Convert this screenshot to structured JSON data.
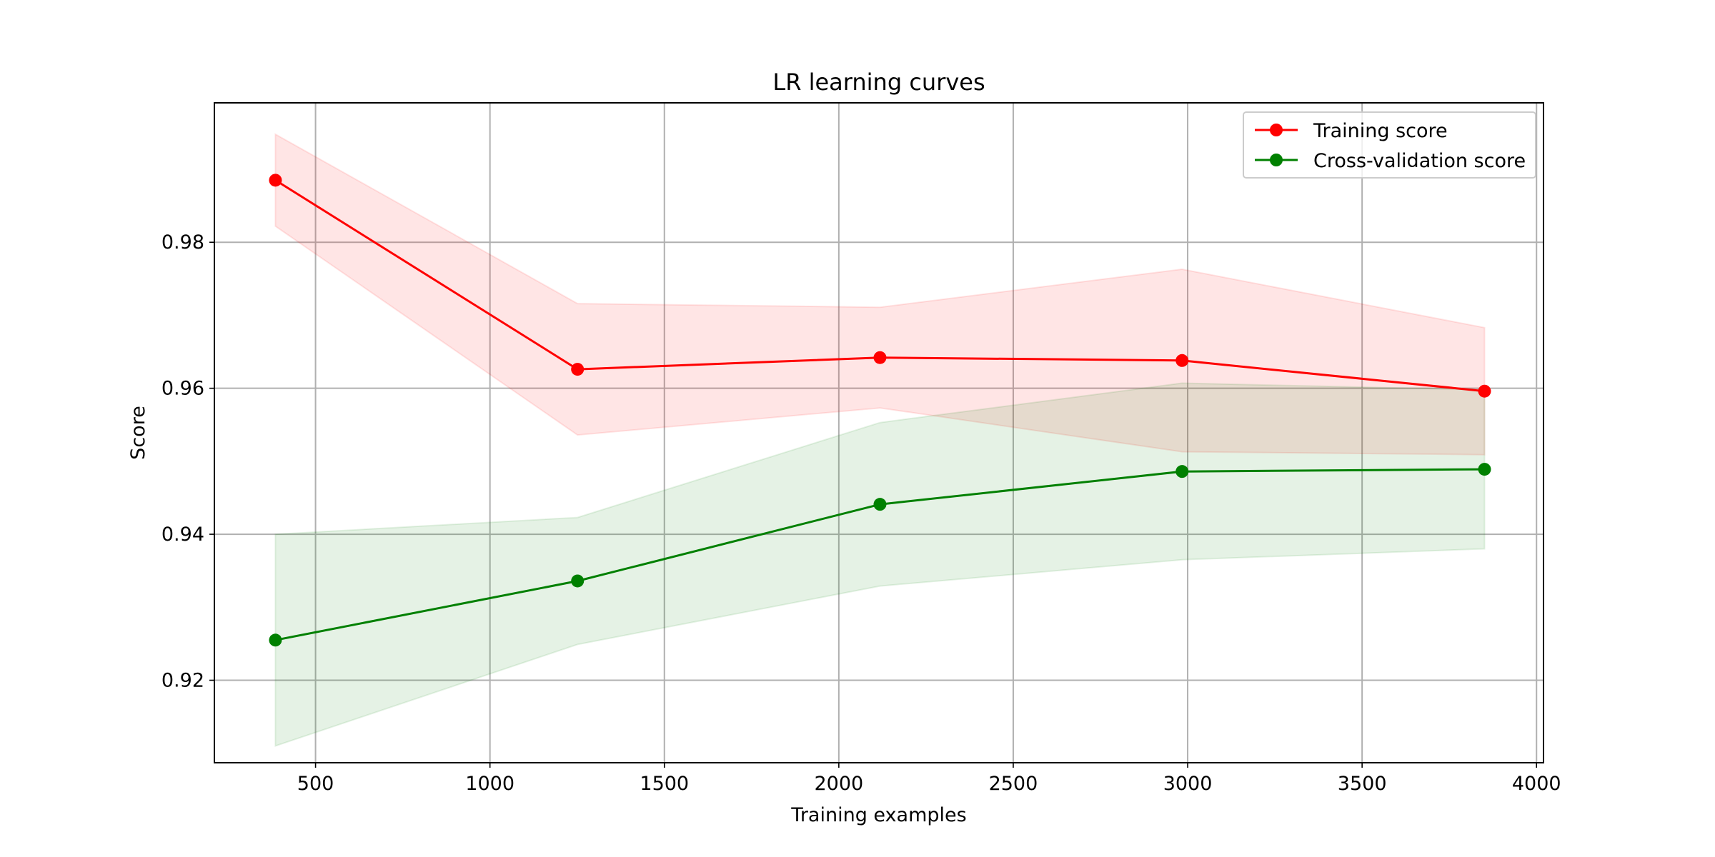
{
  "chart_data": {
    "type": "line",
    "title": "LR learning curves",
    "xlabel": "Training examples",
    "ylabel": "Score",
    "xlim": [
      210,
      4020
    ],
    "ylim": [
      0.9087,
      0.9991
    ],
    "xticks": [
      500,
      1000,
      1500,
      2000,
      2500,
      3000,
      3500,
      4000
    ],
    "yticks": [
      0.92,
      0.94,
      0.96,
      0.98
    ],
    "ytick_labels": [
      "0.92",
      "0.94",
      "0.96",
      "0.98"
    ],
    "grid": true,
    "legend_position": "top-right",
    "x": [
      385,
      1251,
      2118,
      2984,
      3851
    ],
    "series": [
      {
        "name": "Training score",
        "color": "#ff0000",
        "fill_color": "#ff0000",
        "values": [
          0.9885,
          0.9626,
          0.9642,
          0.9638,
          0.9596
        ],
        "upper": [
          0.9948,
          0.9716,
          0.9711,
          0.9763,
          0.9683
        ],
        "lower": [
          0.9822,
          0.9536,
          0.9573,
          0.9513,
          0.9509
        ]
      },
      {
        "name": "Cross-validation score",
        "color": "#008000",
        "fill_color": "#008000",
        "values": [
          0.9255,
          0.9336,
          0.9441,
          0.9486,
          0.9489
        ],
        "upper": [
          0.94,
          0.9423,
          0.9553,
          0.9607,
          0.9598
        ],
        "lower": [
          0.911,
          0.9249,
          0.9329,
          0.9365,
          0.938
        ]
      }
    ]
  }
}
